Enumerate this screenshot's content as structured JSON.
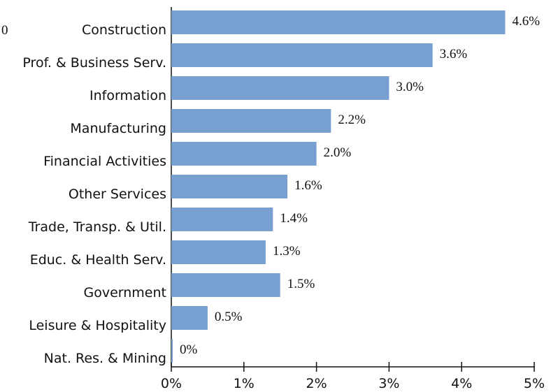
{
  "chart_data": {
    "type": "barh",
    "annotation": "0",
    "categories": [
      "Construction",
      "Prof. & Business Serv.",
      "Information",
      "Manufacturing",
      "Financial Activities",
      "Other Services",
      "Trade, Transp. & Util.",
      "Educ. & Health Serv.",
      "Government",
      "Leisure & Hospitality",
      "Nat. Res. & Mining"
    ],
    "values": [
      4.6,
      3.6,
      3.0,
      2.2,
      2.0,
      1.6,
      1.4,
      1.3,
      1.5,
      0.5,
      0
    ],
    "value_labels": [
      "4.6%",
      "3.6%",
      "3.0%",
      "2.2%",
      "2.0%",
      "1.6%",
      "1.4%",
      "1.3%",
      "1.5%",
      "0.5%",
      "0%"
    ],
    "color": "#779fd0",
    "xlim": [
      0,
      5
    ],
    "xticks": [
      {
        "value": 0,
        "label": "0%"
      },
      {
        "value": 1,
        "label": "1%"
      },
      {
        "value": 2,
        "label": "2%"
      },
      {
        "value": 3,
        "label": "3%"
      },
      {
        "value": 4,
        "label": "4%"
      },
      {
        "value": 5,
        "label": "5%"
      }
    ],
    "grid": false
  }
}
